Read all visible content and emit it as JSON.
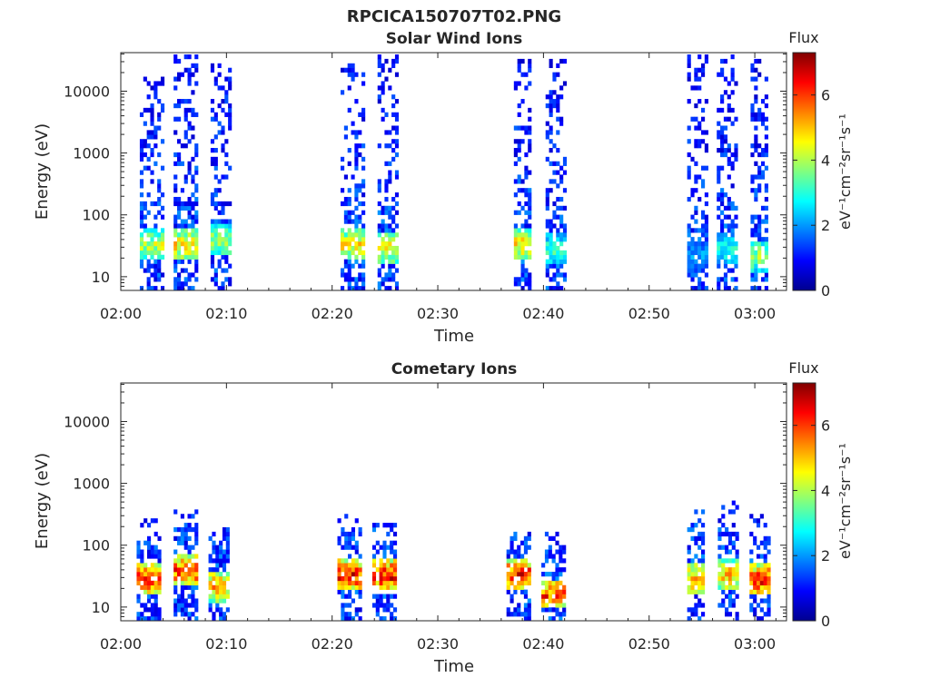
{
  "figure": {
    "title": "RPCICA150707T02.PNG"
  },
  "colorscale": {
    "colors": [
      "#00008f",
      "#0000ff",
      "#0080ff",
      "#00ffff",
      "#80ff80",
      "#ffff00",
      "#ff8000",
      "#ff0000",
      "#800000"
    ]
  },
  "chart_data": [
    {
      "type": "heatmap",
      "title": "Solar Wind Ions",
      "xlabel": "Time",
      "ylabel": "Energy (eV)",
      "yscale": "log",
      "x_ticks": [
        "02:00",
        "02:10",
        "02:20",
        "02:30",
        "02:40",
        "02:50",
        "03:00"
      ],
      "y_ticks": [
        "10",
        "100",
        "1000",
        "10000"
      ],
      "xlim_minutes": [
        0,
        63
      ],
      "ylim": [
        6,
        42000
      ],
      "colorbar": {
        "label": "Flux",
        "unit": "eV⁻¹cm⁻²sr⁻¹s⁻¹",
        "range": [
          0,
          7.3
        ],
        "ticks": [
          "0",
          "2",
          "4",
          "6"
        ]
      },
      "bursts": [
        {
          "t_start": 1.8,
          "t_end": 3.8,
          "e_max": 15000,
          "peak_energy": 30,
          "peak_flux": 4.5,
          "noise_flux": 1.2
        },
        {
          "t_start": 5.0,
          "t_end": 7.0,
          "e_max": 35000,
          "peak_energy": 30,
          "peak_flux": 5.2,
          "noise_flux": 1.2
        },
        {
          "t_start": 8.5,
          "t_end": 10.2,
          "e_max": 25000,
          "peak_energy": 35,
          "peak_flux": 4.3,
          "noise_flux": 1.2
        },
        {
          "t_start": 20.8,
          "t_end": 22.8,
          "e_max": 25000,
          "peak_energy": 30,
          "peak_flux": 5.0,
          "noise_flux": 1.2
        },
        {
          "t_start": 24.3,
          "t_end": 26.0,
          "e_max": 38000,
          "peak_energy": 28,
          "peak_flux": 5.2,
          "noise_flux": 1.2
        },
        {
          "t_start": 37.2,
          "t_end": 38.8,
          "e_max": 35000,
          "peak_energy": 30,
          "peak_flux": 5.3,
          "noise_flux": 1.2
        },
        {
          "t_start": 40.2,
          "t_end": 42.0,
          "e_max": 32000,
          "peak_energy": 25,
          "peak_flux": 3.5,
          "noise_flux": 1.2
        },
        {
          "t_start": 53.6,
          "t_end": 55.4,
          "e_max": 35000,
          "peak_energy": 20,
          "peak_flux": 2.3,
          "noise_flux": 1.2
        },
        {
          "t_start": 56.4,
          "t_end": 58.2,
          "e_max": 35000,
          "peak_energy": 25,
          "peak_flux": 3.2,
          "noise_flux": 1.2
        },
        {
          "t_start": 59.6,
          "t_end": 61.2,
          "e_max": 32000,
          "peak_energy": 20,
          "peak_flux": 4.2,
          "noise_flux": 1.2
        }
      ]
    },
    {
      "type": "heatmap",
      "title": "Cometary Ions",
      "xlabel": "Time",
      "ylabel": "Energy (eV)",
      "yscale": "log",
      "x_ticks": [
        "02:00",
        "02:10",
        "02:20",
        "02:30",
        "02:40",
        "02:50",
        "03:00"
      ],
      "y_ticks": [
        "10",
        "100",
        "1000",
        "10000"
      ],
      "xlim_minutes": [
        0,
        63
      ],
      "ylim": [
        6,
        42000
      ],
      "colorbar": {
        "label": "Flux",
        "unit": "eV⁻¹cm⁻²sr⁻¹s⁻¹",
        "range": [
          0,
          7.3
        ],
        "ticks": [
          "0",
          "2",
          "4",
          "6"
        ]
      },
      "bursts": [
        {
          "t_start": 1.5,
          "t_end": 3.6,
          "e_max": 250,
          "peak_energy": 25,
          "peak_flux": 6.8,
          "noise_flux": 1.2
        },
        {
          "t_start": 5.0,
          "t_end": 7.0,
          "e_max": 350,
          "peak_energy": 35,
          "peak_flux": 6.6,
          "noise_flux": 1.2
        },
        {
          "t_start": 8.3,
          "t_end": 10.0,
          "e_max": 180,
          "peak_energy": 20,
          "peak_flux": 5.8,
          "noise_flux": 1.2
        },
        {
          "t_start": 20.5,
          "t_end": 22.8,
          "e_max": 320,
          "peak_energy": 30,
          "peak_flux": 6.8,
          "noise_flux": 1.2
        },
        {
          "t_start": 23.8,
          "t_end": 26.0,
          "e_max": 220,
          "peak_energy": 30,
          "peak_flux": 7.0,
          "noise_flux": 1.2
        },
        {
          "t_start": 36.5,
          "t_end": 38.8,
          "e_max": 200,
          "peak_energy": 30,
          "peak_flux": 6.8,
          "noise_flux": 1.2
        },
        {
          "t_start": 39.8,
          "t_end": 41.8,
          "e_max": 150,
          "peak_energy": 15,
          "peak_flux": 6.5,
          "noise_flux": 1.2
        },
        {
          "t_start": 53.6,
          "t_end": 55.2,
          "e_max": 330,
          "peak_energy": 25,
          "peak_flux": 6.0,
          "noise_flux": 1.2
        },
        {
          "t_start": 56.5,
          "t_end": 58.3,
          "e_max": 480,
          "peak_energy": 30,
          "peak_flux": 5.6,
          "noise_flux": 1.2
        },
        {
          "t_start": 59.5,
          "t_end": 61.2,
          "e_max": 300,
          "peak_energy": 25,
          "peak_flux": 6.9,
          "noise_flux": 1.2
        }
      ]
    }
  ]
}
